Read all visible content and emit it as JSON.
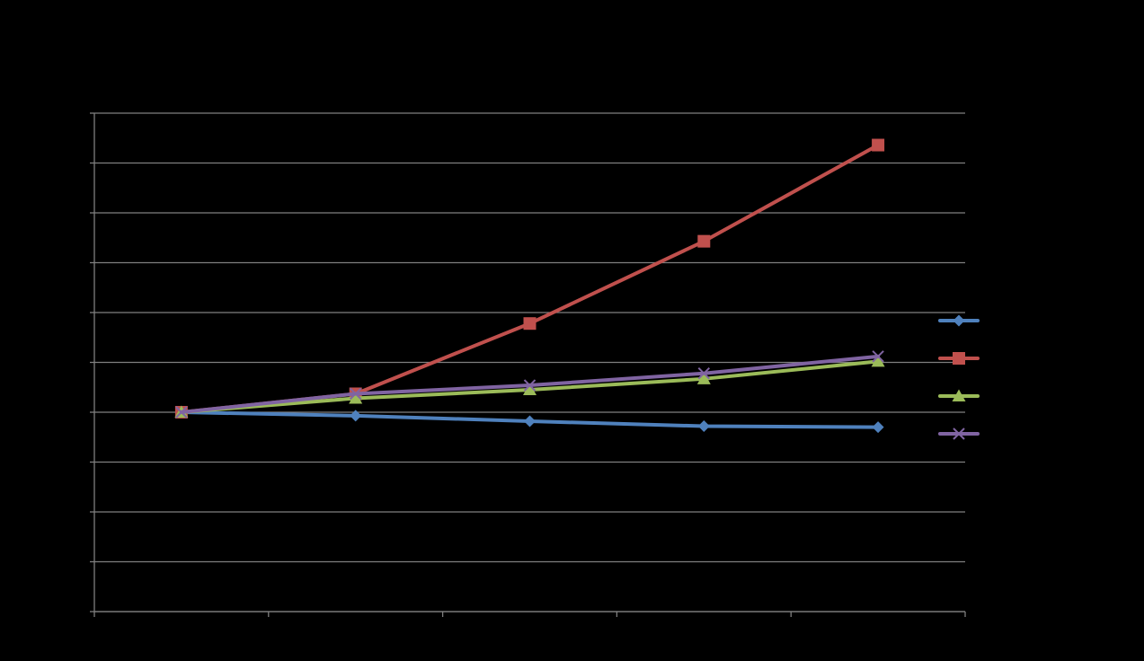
{
  "chart_data": {
    "type": "line",
    "title": "",
    "xlabel": "",
    "ylabel": "",
    "categories": [
      "",
      "",
      "",
      "",
      ""
    ],
    "ylim": [
      -4,
      6
    ],
    "grid": true,
    "legend_position": "right",
    "series": [
      {
        "color": "#4f81bd",
        "marker": "diamond",
        "values": [
          0,
          -0.07,
          -0.18,
          -0.28,
          -0.3
        ]
      },
      {
        "color": "#c0504d",
        "marker": "square",
        "values": [
          0,
          0.37,
          1.78,
          3.43,
          5.36
        ]
      },
      {
        "color": "#9bbb59",
        "marker": "triangle",
        "values": [
          0,
          0.28,
          0.45,
          0.67,
          1.02
        ]
      },
      {
        "color": "#8064a2",
        "marker": "x",
        "values": [
          0,
          0.37,
          0.54,
          0.78,
          1.12
        ]
      }
    ],
    "colors": {
      "background": "#000000",
      "grid": "#7f7f7f",
      "axis": "#7f7f7f"
    }
  }
}
